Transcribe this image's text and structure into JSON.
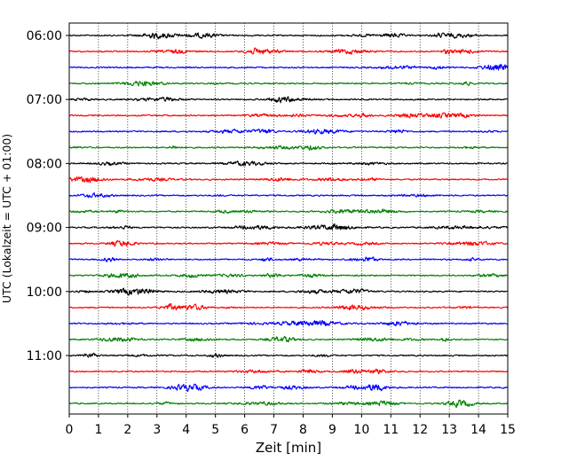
{
  "chart_data": {
    "type": "line",
    "subtype": "helicorder",
    "xlabel": "Zeit  [min]",
    "ylabel": "UTC (Lokalzeit = UTC + 01:00)",
    "xlim": [
      0,
      15
    ],
    "x_ticks": [
      0,
      1,
      2,
      3,
      4,
      5,
      6,
      7,
      8,
      9,
      10,
      11,
      12,
      13,
      14,
      15
    ],
    "y_tick_labels": [
      "06:00",
      "07:00",
      "08:00",
      "09:00",
      "10:00",
      "11:00"
    ],
    "y_tick_rows": [
      0,
      4,
      8,
      12,
      16,
      20
    ],
    "grid_x": true,
    "row_count": 24,
    "row_colors": [
      "#000000",
      "#ff0000",
      "#0000ff",
      "#008000"
    ],
    "rows": [
      {
        "start": "06:00"
      },
      {
        "start": "06:15"
      },
      {
        "start": "06:30"
      },
      {
        "start": "06:45"
      },
      {
        "start": "07:00"
      },
      {
        "start": "07:15"
      },
      {
        "start": "07:30"
      },
      {
        "start": "07:45"
      },
      {
        "start": "08:00"
      },
      {
        "start": "08:15"
      },
      {
        "start": "08:30"
      },
      {
        "start": "08:45"
      },
      {
        "start": "09:00"
      },
      {
        "start": "09:15"
      },
      {
        "start": "09:30"
      },
      {
        "start": "09:45"
      },
      {
        "start": "10:00"
      },
      {
        "start": "10:15"
      },
      {
        "start": "10:30"
      },
      {
        "start": "10:45"
      },
      {
        "start": "11:00"
      },
      {
        "start": "11:15"
      },
      {
        "start": "11:30"
      },
      {
        "start": "11:45"
      }
    ]
  }
}
